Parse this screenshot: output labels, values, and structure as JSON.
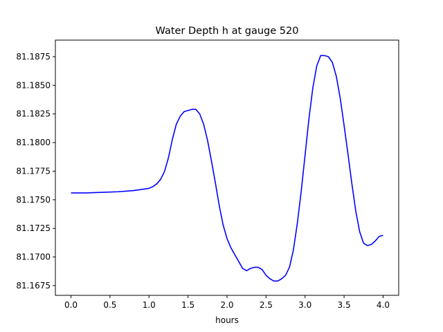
{
  "chart_data": {
    "type": "line",
    "title": "Water Depth h at gauge 520",
    "xlabel": "hours",
    "ylabel": "",
    "xlim": [
      -0.2,
      4.2
    ],
    "ylim": [
      81.16665,
      81.18895
    ],
    "x_ticks": [
      0.0,
      0.5,
      1.0,
      1.5,
      2.0,
      2.5,
      3.0,
      3.5,
      4.0
    ],
    "x_tick_labels": [
      "0.0",
      "0.5",
      "1.0",
      "1.5",
      "2.0",
      "2.5",
      "3.0",
      "3.5",
      "4.0"
    ],
    "y_ticks": [
      81.1675,
      81.17,
      81.1725,
      81.175,
      81.1775,
      81.18,
      81.1825,
      81.185,
      81.1875
    ],
    "y_tick_labels": [
      "81.1675",
      "81.1700",
      "81.1725",
      "81.1750",
      "81.1775",
      "81.1800",
      "81.1825",
      "81.1850",
      "81.1875"
    ],
    "grid": false,
    "series": [
      {
        "color": "#0000ff",
        "x": [
          0.0,
          0.2,
          0.4,
          0.6,
          0.8,
          0.9,
          1.0,
          1.05,
          1.1,
          1.15,
          1.2,
          1.25,
          1.3,
          1.35,
          1.4,
          1.45,
          1.5,
          1.55,
          1.6,
          1.65,
          1.7,
          1.75,
          1.8,
          1.85,
          1.9,
          1.95,
          2.0,
          2.05,
          2.1,
          2.15,
          2.2,
          2.25,
          2.3,
          2.35,
          2.4,
          2.45,
          2.5,
          2.55,
          2.6,
          2.65,
          2.7,
          2.75,
          2.8,
          2.85,
          2.9,
          2.95,
          3.0,
          3.05,
          3.1,
          3.15,
          3.2,
          3.25,
          3.3,
          3.35,
          3.4,
          3.45,
          3.5,
          3.55,
          3.6,
          3.65,
          3.7,
          3.75,
          3.8,
          3.85,
          3.9,
          3.95,
          4.0
        ],
        "y": [
          81.1756,
          81.1756,
          81.17565,
          81.1757,
          81.1758,
          81.1759,
          81.176,
          81.17615,
          81.1764,
          81.1768,
          81.1775,
          81.1787,
          81.1803,
          81.1816,
          81.1823,
          81.1827,
          81.1828,
          81.1829,
          81.1829,
          81.1825,
          81.1816,
          81.1802,
          81.1784,
          81.1765,
          81.1745,
          81.1728,
          81.1716,
          81.1708,
          81.1702,
          81.1696,
          81.169,
          81.1688,
          81.169,
          81.1691,
          81.1691,
          81.1689,
          81.1684,
          81.1681,
          81.1679,
          81.1679,
          81.1681,
          81.1684,
          81.1691,
          81.1706,
          81.1729,
          81.1757,
          81.1789,
          81.1821,
          81.1848,
          81.1867,
          81.1876,
          81.1876,
          81.1875,
          81.187,
          81.1858,
          81.1839,
          81.1815,
          81.179,
          81.1764,
          81.174,
          81.1722,
          81.1712,
          81.171,
          81.1711,
          81.1714,
          81.1718,
          81.1719
        ]
      }
    ]
  }
}
